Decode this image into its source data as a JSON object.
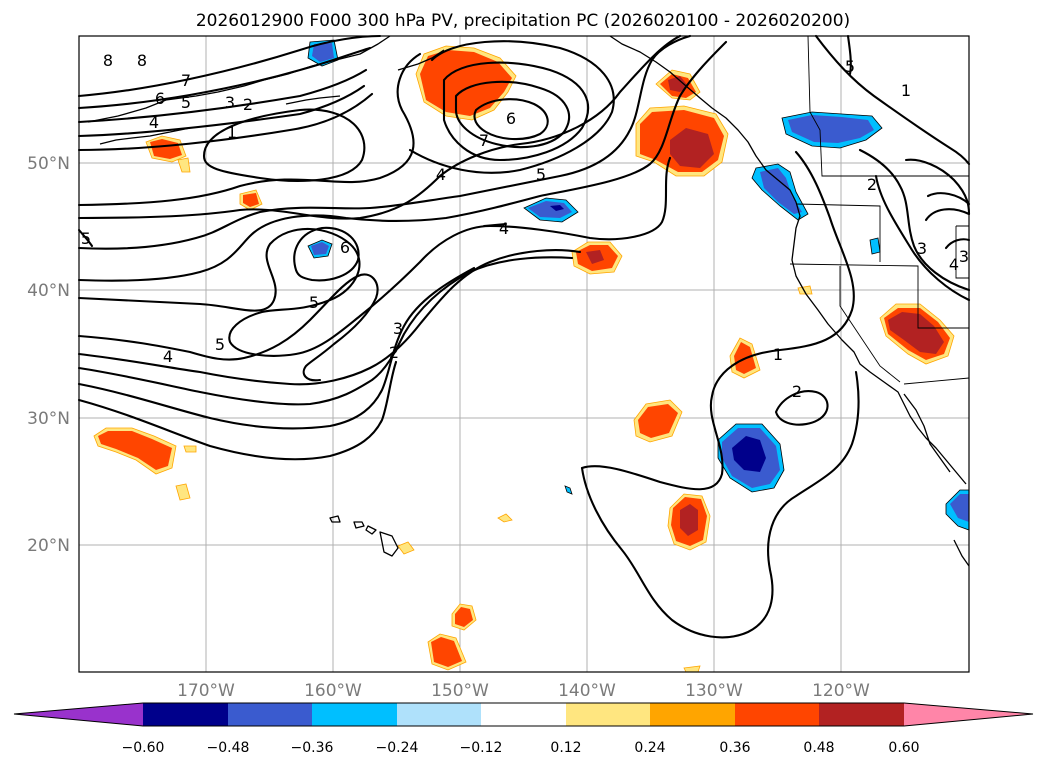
{
  "title": "2026012900 F000 300 hPa PV, precipitation PC (2026020100 - 2026020200)",
  "map": {
    "lat_labels": [
      "50°N",
      "40°N",
      "30°N",
      "20°N"
    ],
    "lon_labels": [
      "170°W",
      "160°W",
      "150°W",
      "140°W",
      "130°W",
      "120°W"
    ],
    "grid": true,
    "extent": {
      "lon_min": -180,
      "lon_max": -110,
      "lat_min": 10,
      "lat_max": 60
    }
  },
  "contour_labels": [
    "8",
    "8",
    "7",
    "6",
    "5",
    "4",
    "3",
    "2",
    "1",
    "6",
    "7",
    "5",
    "4",
    "4",
    "5",
    "6",
    "5",
    "5",
    "4",
    "3",
    "2",
    "1",
    "2",
    "2",
    "1",
    "3",
    "4",
    "3",
    "5"
  ],
  "colorbar": {
    "ticks": [
      "−0.60",
      "−0.48",
      "−0.36",
      "−0.24",
      "−0.12",
      "0.12",
      "0.24",
      "0.36",
      "0.48",
      "0.60"
    ],
    "colors": [
      "#9932cc",
      "#00008b",
      "#3a5bcf",
      "#00bfff",
      "#afe1fb",
      "#ffffff",
      "#ffe680",
      "#ffa500",
      "#ff4500",
      "#b22222",
      "#ff85a8"
    ]
  },
  "anomaly_colors": {
    "neg_light": "#00bfff",
    "neg_mid": "#3a5bcf",
    "neg_dark": "#00008b",
    "pos_light": "#ffe680",
    "pos_orange": "#ffa500",
    "pos_mid": "#ff4500",
    "pos_dark": "#b22222"
  }
}
